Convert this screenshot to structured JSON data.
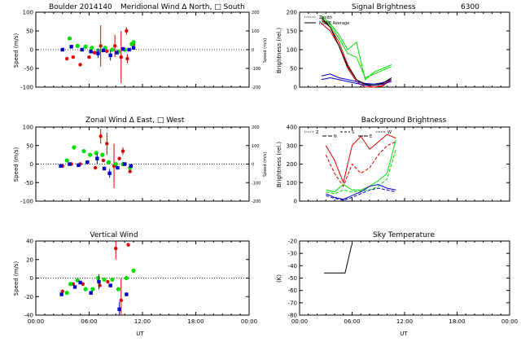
{
  "panels": {
    "merid": {
      "title_left": "Boulder  2014140",
      "title_right": "Meridional Wind  Δ North, □ South",
      "ylabel": "Speed (m/s)",
      "ylabel_right": "Speed (m/s)",
      "xlim": [
        0,
        24
      ],
      "ylim": [
        -100,
        100
      ],
      "yticks": [
        "-100",
        "-50",
        "0",
        "50",
        "100"
      ],
      "yticks_right": [
        "-200",
        "-100",
        "0",
        "100",
        "200"
      ]
    },
    "zonal": {
      "title": "Zonal Wind     Δ East, □ West",
      "ylabel": "Speed (m/s)",
      "ylabel_right": "Speed (m/s)",
      "xlim": [
        0,
        24
      ],
      "ylim": [
        -100,
        100
      ],
      "yticks": [
        "-100",
        "-50",
        "0",
        "50",
        "100"
      ],
      "yticks_right": [
        "-200",
        "-100",
        "0",
        "100",
        "200"
      ]
    },
    "vert": {
      "title": "Vertical Wind",
      "ylabel": "Speed (m/s)",
      "xlabel": "UT",
      "xlim": [
        0,
        24
      ],
      "ylim": [
        -50,
        50
      ],
      "yticks": [
        "-40",
        "-20",
        "0",
        "20",
        "40"
      ],
      "xticks": [
        "00:00",
        "06:00",
        "12:00",
        "18:00",
        "00:00"
      ]
    },
    "signal": {
      "title_left": "Signal Brightness",
      "title_right": "6300",
      "ylabel": "Brightness (rel.)",
      "xlim": [
        0,
        24
      ],
      "ylim": [
        0,
        200
      ],
      "yticks": [
        "0",
        "50",
        "100",
        "150",
        "200"
      ],
      "legend": [
        "Zenith",
        "NSWE Average"
      ]
    },
    "background": {
      "title": "Background Brightness",
      "ylabel": "Brightness (rel.)",
      "xlim": [
        0,
        24
      ],
      "ylim": [
        0,
        400
      ],
      "yticks": [
        "0",
        "100",
        "200",
        "300",
        "400"
      ],
      "legend": [
        "Z",
        "N",
        "S",
        "E",
        "W"
      ]
    },
    "sky": {
      "title": "Sky Temperature",
      "ylabel": "(K)",
      "xlabel": "UT",
      "xlim": [
        0,
        24
      ],
      "ylim": [
        -80,
        -15
      ],
      "yticks": [
        "-80",
        "-70",
        "-60",
        "-50",
        "-40",
        "-30",
        "-20"
      ],
      "xticks": [
        "00:00",
        "06:00",
        "12:00",
        "18:00",
        "00:00"
      ]
    }
  },
  "colors": {
    "red": "#dd0000",
    "green": "#00dd00",
    "blue": "#0000cc",
    "black": "#000000"
  },
  "chart_data": [
    {
      "type": "scatter",
      "title": "Boulder  2014140   Meridional Wind  Δ North, □ South",
      "ylabel": "Speed (m/s)",
      "xlim": [
        0,
        24
      ],
      "ylim": [
        -100,
        100
      ],
      "series": [
        {
          "color": "red",
          "points": [
            [
              3.5,
              -24
            ],
            [
              4.2,
              -20
            ],
            [
              5.0,
              -40
            ],
            [
              6.0,
              -20
            ],
            [
              6.6,
              -8
            ],
            [
              7.3,
              10
            ],
            [
              8.0,
              -4
            ],
            [
              8.9,
              10
            ],
            [
              9.6,
              -20
            ],
            [
              10.2,
              50
            ],
            [
              10.3,
              -24
            ],
            [
              11.0,
              15
            ]
          ],
          "err": [
            0,
            0,
            0,
            0,
            0,
            55,
            0,
            30,
            70,
            10,
            12,
            0
          ]
        },
        {
          "color": "green",
          "points": [
            [
              3.8,
              30
            ],
            [
              4.7,
              10
            ],
            [
              5.6,
              8
            ],
            [
              6.3,
              5
            ],
            [
              7.0,
              -2
            ],
            [
              7.8,
              5
            ],
            [
              8.6,
              0
            ],
            [
              9.3,
              -5
            ],
            [
              10.0,
              0
            ],
            [
              10.8,
              15
            ],
            [
              11.0,
              20
            ]
          ],
          "err": [
            0,
            0,
            0,
            0,
            0,
            0,
            0,
            0,
            0,
            0,
            0
          ]
        },
        {
          "color": "blue",
          "points": [
            [
              3.0,
              0
            ],
            [
              4.0,
              8
            ],
            [
              5.2,
              0
            ],
            [
              6.2,
              -5
            ],
            [
              7.0,
              -10
            ],
            [
              7.6,
              -2
            ],
            [
              8.4,
              -15
            ],
            [
              9.1,
              -8
            ],
            [
              9.8,
              2
            ],
            [
              10.5,
              0
            ],
            [
              11.0,
              5
            ]
          ],
          "err": [
            0,
            0,
            0,
            0,
            12,
            0,
            14,
            0,
            0,
            0,
            0
          ]
        }
      ]
    },
    {
      "type": "scatter",
      "title": "Zonal Wind     Δ East, □ West",
      "ylabel": "Speed (m/s)",
      "xlim": [
        0,
        24
      ],
      "ylim": [
        -100,
        100
      ],
      "series": [
        {
          "color": "red",
          "points": [
            [
              3.0,
              -5
            ],
            [
              4.0,
              0
            ],
            [
              5.0,
              0
            ],
            [
              5.8,
              5
            ],
            [
              6.7,
              -10
            ],
            [
              7.3,
              75
            ],
            [
              7.6,
              10
            ],
            [
              8.0,
              55
            ],
            [
              8.8,
              -5
            ],
            [
              9.4,
              15
            ],
            [
              9.8,
              35
            ],
            [
              10.6,
              -20
            ]
          ],
          "err": [
            0,
            0,
            0,
            0,
            0,
            20,
            0,
            30,
            60,
            0,
            10,
            0
          ]
        },
        {
          "color": "green",
          "points": [
            [
              3.5,
              10
            ],
            [
              4.3,
              45
            ],
            [
              5.4,
              35
            ],
            [
              6.1,
              25
            ],
            [
              6.8,
              30
            ],
            [
              7.5,
              25
            ],
            [
              8.2,
              5
            ],
            [
              9.0,
              0
            ],
            [
              9.8,
              0
            ],
            [
              10.6,
              -10
            ]
          ],
          "err": [
            0,
            0,
            0,
            0,
            0,
            0,
            0,
            0,
            0,
            0
          ]
        },
        {
          "color": "blue",
          "points": [
            [
              2.8,
              -5
            ],
            [
              3.8,
              0
            ],
            [
              4.8,
              -3
            ],
            [
              5.8,
              5
            ],
            [
              6.9,
              15
            ],
            [
              7.7,
              -12
            ],
            [
              8.3,
              -25
            ],
            [
              9.2,
              -10
            ],
            [
              10.0,
              0
            ],
            [
              10.7,
              -5
            ]
          ],
          "err": [
            0,
            0,
            0,
            0,
            15,
            0,
            12,
            0,
            0,
            0
          ]
        }
      ]
    },
    {
      "type": "scatter",
      "title": "Vertical Wind",
      "ylabel": "Speed (m/s)",
      "xlabel": "UT",
      "xlim": [
        0,
        24
      ],
      "ylim": [
        -50,
        50
      ],
      "series": [
        {
          "color": "red",
          "points": [
            [
              3.0,
              -18
            ],
            [
              4.2,
              -8
            ],
            [
              5.3,
              -8
            ],
            [
              7.2,
              -10
            ],
            [
              8.1,
              -5
            ],
            [
              9.0,
              40
            ],
            [
              9.6,
              -30
            ],
            [
              10.4,
              45
            ]
          ],
          "err": [
            0,
            0,
            0,
            0,
            0,
            15,
            30,
            0
          ]
        },
        {
          "color": "green",
          "points": [
            [
              3.5,
              -20
            ],
            [
              3.9,
              -8
            ],
            [
              4.7,
              -3
            ],
            [
              5.6,
              -15
            ],
            [
              6.4,
              -15
            ],
            [
              7.0,
              0
            ],
            [
              7.7,
              -2
            ],
            [
              8.6,
              -2
            ],
            [
              9.3,
              -15
            ],
            [
              10.2,
              0
            ],
            [
              11.0,
              10
            ]
          ],
          "err": [
            0,
            0,
            0,
            0,
            0,
            0,
            0,
            0,
            0,
            0,
            0
          ]
        },
        {
          "color": "blue",
          "points": [
            [
              2.9,
              -22
            ],
            [
              4.4,
              -12
            ],
            [
              5.0,
              -6
            ],
            [
              6.2,
              -20
            ],
            [
              7.1,
              -5
            ],
            [
              8.4,
              -10
            ],
            [
              9.4,
              -42
            ],
            [
              10.2,
              -22
            ]
          ],
          "err": [
            0,
            0,
            0,
            0,
            10,
            0,
            10,
            0
          ]
        }
      ]
    },
    {
      "type": "line",
      "title": "Signal Brightness   6300",
      "ylabel": "Brightness (rel.)",
      "xlim": [
        0,
        24
      ],
      "ylim": [
        0,
        200
      ],
      "series": [
        {
          "color": "red",
          "x": [
            2.5,
            3.5,
            4.5,
            5.5,
            6.5,
            7.5,
            8.5,
            9.5,
            10.5
          ],
          "y": [
            180,
            160,
            120,
            60,
            20,
            5,
            0,
            5,
            25
          ]
        },
        {
          "color": "red",
          "x": [
            2.5,
            3.5,
            4.5,
            5.5,
            6.5,
            7.5,
            8.5,
            9.5,
            10.5
          ],
          "y": [
            170,
            150,
            110,
            50,
            15,
            0,
            0,
            3,
            20
          ]
        },
        {
          "color": "green",
          "x": [
            2.5,
            3.5,
            4.5,
            5.5,
            6.5,
            7.5,
            8.5,
            9.5,
            10.5
          ],
          "y": [
            190,
            170,
            140,
            100,
            120,
            20,
            40,
            50,
            60
          ]
        },
        {
          "color": "green",
          "x": [
            2.5,
            3.5,
            4.5,
            5.5,
            6.5,
            7.5,
            8.5,
            9.5,
            10.5
          ],
          "y": [
            185,
            165,
            130,
            90,
            80,
            25,
            35,
            45,
            55
          ]
        },
        {
          "color": "blue",
          "x": [
            2.5,
            3.5,
            4.5,
            5.5,
            6.5,
            7.5,
            8.5,
            9.5,
            10.5
          ],
          "y": [
            30,
            35,
            25,
            20,
            15,
            10,
            8,
            12,
            20
          ]
        },
        {
          "color": "blue",
          "x": [
            2.5,
            3.5,
            4.5,
            5.5,
            6.5,
            7.5,
            8.5,
            9.5,
            10.5
          ],
          "y": [
            20,
            25,
            20,
            15,
            10,
            5,
            5,
            8,
            15
          ]
        },
        {
          "color": "black",
          "x": [
            2.5,
            3.5,
            4.5,
            5.5,
            6.5,
            7.5,
            8.5,
            9.5,
            10.5
          ],
          "y": [
            185,
            160,
            110,
            55,
            20,
            8,
            5,
            10,
            25
          ]
        }
      ]
    },
    {
      "type": "line",
      "title": "Background Brightness",
      "ylabel": "Brightness (rel.)",
      "xlim": [
        0,
        24
      ],
      "ylim": [
        0,
        400
      ],
      "series": [
        {
          "color": "red",
          "x": [
            3,
            4,
            5,
            6,
            7,
            8,
            9,
            10,
            11
          ],
          "y": [
            300,
            220,
            100,
            300,
            350,
            280,
            320,
            360,
            340
          ]
        },
        {
          "color": "red",
          "x": [
            3,
            4,
            5,
            6,
            7,
            8,
            9,
            10,
            11
          ],
          "y": [
            250,
            150,
            80,
            200,
            150,
            180,
            250,
            300,
            320
          ]
        },
        {
          "color": "green",
          "x": [
            3,
            4,
            5,
            6,
            7,
            8,
            9,
            10,
            11
          ],
          "y": [
            60,
            50,
            90,
            60,
            60,
            80,
            110,
            150,
            330
          ]
        },
        {
          "color": "green",
          "x": [
            3,
            4,
            5,
            6,
            7,
            8,
            9,
            10,
            11
          ],
          "y": [
            50,
            40,
            60,
            50,
            55,
            60,
            80,
            120,
            280
          ]
        },
        {
          "color": "blue",
          "x": [
            3,
            4,
            5,
            6,
            7,
            8,
            9,
            10,
            11
          ],
          "y": [
            40,
            20,
            10,
            30,
            50,
            80,
            90,
            70,
            60
          ]
        },
        {
          "color": "blue",
          "x": [
            3,
            4,
            5,
            6,
            7,
            8,
            9,
            10,
            11
          ],
          "y": [
            30,
            15,
            5,
            20,
            40,
            60,
            70,
            60,
            50
          ]
        }
      ]
    },
    {
      "type": "line",
      "title": "Sky Temperature",
      "ylabel": "(K)",
      "xlabel": "UT",
      "xlim": [
        0,
        24
      ],
      "ylim": [
        -80,
        -15
      ],
      "series": [
        {
          "color": "black",
          "x": [
            2.8,
            4.0,
            5.0,
            5.2,
            5.9,
            6.0
          ],
          "y": [
            -43,
            -43,
            -43,
            -43,
            -20,
            -18
          ]
        }
      ]
    }
  ]
}
